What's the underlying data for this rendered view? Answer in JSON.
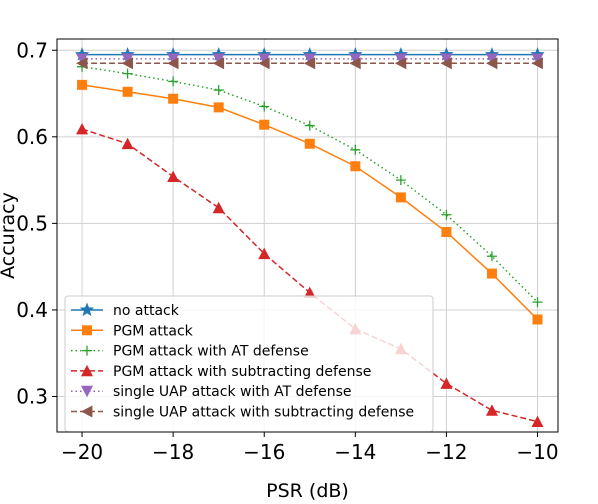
{
  "chart_data": {
    "type": "line",
    "title": "",
    "xlabel": "PSR (dB)",
    "ylabel": "Accuracy",
    "x": [
      -20,
      -19,
      -18,
      -17,
      -16,
      -15,
      -14,
      -13,
      -12,
      -11,
      -10
    ],
    "xticks": [
      -20,
      -18,
      -16,
      -14,
      -12,
      -10
    ],
    "xtick_labels": [
      "−20",
      "−18",
      "−16",
      "−14",
      "−12",
      "−10"
    ],
    "yticks": [
      0.3,
      0.4,
      0.5,
      0.6,
      0.7
    ],
    "ytick_labels": [
      "0.3",
      "0.4",
      "0.5",
      "0.6",
      "0.7"
    ],
    "xlim": [
      -20.55,
      -9.55
    ],
    "ylim": [
      0.259,
      0.713
    ],
    "grid": true,
    "legend_position": "lower-left",
    "series": [
      {
        "name": "no attack",
        "color": "#1f77b4",
        "line_style": "solid",
        "marker": "star",
        "values": [
          0.695,
          0.695,
          0.695,
          0.695,
          0.695,
          0.695,
          0.695,
          0.695,
          0.695,
          0.695,
          0.695
        ]
      },
      {
        "name": "PGM attack",
        "color": "#ff7f0e",
        "line_style": "solid",
        "marker": "square",
        "values": [
          0.66,
          0.652,
          0.644,
          0.634,
          0.614,
          0.592,
          0.566,
          0.53,
          0.49,
          0.442,
          0.389
        ]
      },
      {
        "name": "PGM attack with AT defense",
        "color": "#2ca02c",
        "line_style": "dotted",
        "marker": "plus",
        "values": [
          0.681,
          0.673,
          0.664,
          0.654,
          0.635,
          0.613,
          0.585,
          0.55,
          0.51,
          0.462,
          0.409
        ]
      },
      {
        "name": "PGM attack with subtracting defense",
        "color": "#d62728",
        "line_style": "dashed",
        "marker": "triangle-up",
        "values": [
          0.609,
          0.592,
          0.554,
          0.518,
          0.465,
          0.42,
          0.378,
          0.355,
          0.315,
          0.284,
          0.271
        ]
      },
      {
        "name": "single UAP attack with AT defense",
        "color": "#9467bd",
        "line_style": "dotted",
        "marker": "triangle-down",
        "values": [
          0.69,
          0.69,
          0.69,
          0.69,
          0.69,
          0.69,
          0.69,
          0.69,
          0.69,
          0.69,
          0.69
        ]
      },
      {
        "name": "single UAP attack with subtracting defense",
        "color": "#8c564b",
        "line_style": "dashed",
        "marker": "triangle-left",
        "values": [
          0.685,
          0.685,
          0.685,
          0.685,
          0.685,
          0.685,
          0.685,
          0.685,
          0.685,
          0.685,
          0.685
        ]
      }
    ]
  }
}
